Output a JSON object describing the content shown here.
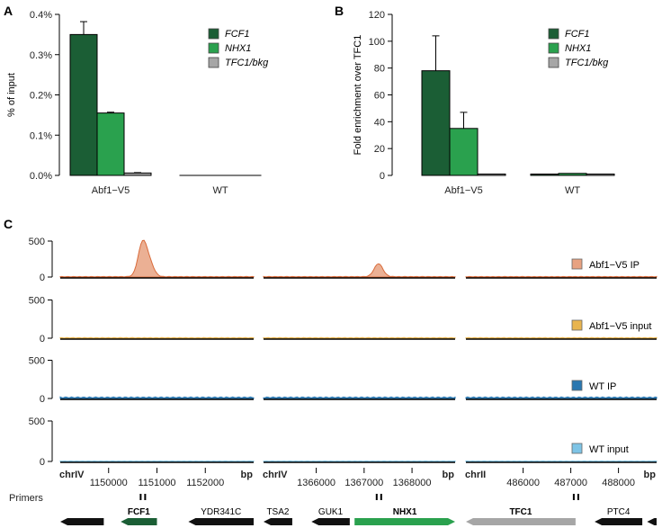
{
  "colors": {
    "FCF1": "#1b5e35",
    "NHX1": "#2aa14e",
    "TFC1_bkg": "#a6a6a6",
    "ip_fill": "#e8a281",
    "ip_line": "#d96b3b",
    "abf1_input": "#e8b44e",
    "wt_ip": "#2a77b0",
    "wt_input": "#7ec4e6"
  },
  "chart_data": [
    {
      "panel": "A",
      "type": "bar",
      "categories": [
        "Abf1−V5",
        "WT"
      ],
      "series": [
        {
          "name": "FCF1",
          "values": [
            0.35,
            0.0
          ],
          "errors": [
            0.032,
            0.0
          ]
        },
        {
          "name": "NHX1",
          "values": [
            0.155,
            0.0
          ],
          "errors": [
            0.002,
            0.0
          ]
        },
        {
          "name": "TFC1/bkg",
          "values": [
            0.006,
            0.0
          ],
          "errors": [
            0.001,
            0.0
          ]
        }
      ],
      "ylabel": "% of input",
      "yticks": [
        "0.0%",
        "0.1%",
        "0.2%",
        "0.3%",
        "0.4%"
      ],
      "ylim": [
        0,
        0.4
      ],
      "legend": "top-right"
    },
    {
      "panel": "B",
      "type": "bar",
      "categories": [
        "Abf1−V5",
        "WT"
      ],
      "series": [
        {
          "name": "FCF1",
          "values": [
            78,
            1
          ],
          "errors": [
            26,
            0
          ]
        },
        {
          "name": "NHX1",
          "values": [
            35,
            1.5
          ],
          "errors": [
            12,
            0
          ]
        },
        {
          "name": "TFC1/bkg",
          "values": [
            1,
            1
          ],
          "errors": [
            0,
            0
          ]
        }
      ],
      "ylabel": "Fold enrichment over TFC1",
      "yticks": [
        "0",
        "20",
        "40",
        "60",
        "80",
        "100",
        "120"
      ],
      "ylim": [
        0,
        120
      ],
      "legend": "top-right"
    },
    {
      "panel": "C",
      "type": "area",
      "yticks": [
        "0",
        "500"
      ],
      "ylim": [
        0,
        600
      ],
      "tracks": [
        {
          "name": "Abf1−V5 IP",
          "peaks": [
            [
              1150700,
              460
            ],
            [
              1150850,
              170
            ],
            [
              1367300,
              180
            ]
          ],
          "baseline": 8
        },
        {
          "name": "Abf1−V5 input",
          "peaks": [],
          "baseline": 8
        },
        {
          "name": "WT IP",
          "peaks": [],
          "baseline": 20
        },
        {
          "name": "WT input",
          "peaks": [],
          "baseline": 6
        }
      ],
      "regions": [
        {
          "chrom": "chrIV",
          "start": 1149000,
          "end": 1153000,
          "ticks": [
            "1150000",
            "1151000",
            "1152000"
          ],
          "tick_values": [
            1150000,
            1151000,
            1152000
          ],
          "unit": "bp"
        },
        {
          "chrom": "chrIV",
          "start": 1364900,
          "end": 1368900,
          "ticks": [
            "1366000",
            "1367000",
            "1368000"
          ],
          "tick_values": [
            1366000,
            1367000,
            1368000
          ],
          "unit": "bp"
        },
        {
          "chrom": "chrII",
          "start": 484800,
          "end": 488800,
          "ticks": [
            "486000",
            "487000",
            "488000"
          ],
          "tick_values": [
            486000,
            487000,
            488000
          ],
          "unit": "bp"
        }
      ],
      "primers_label": "Primers",
      "primers": [
        1150700,
        1367300,
        487100
      ],
      "genes": [
        {
          "region": 0,
          "name": "",
          "start": 1149000,
          "end": 1149900,
          "strand": "-",
          "color": "black",
          "bold": false
        },
        {
          "region": 0,
          "name": "FCF1",
          "start": 1150250,
          "end": 1151000,
          "strand": "-",
          "color": "FCF1",
          "bold": true
        },
        {
          "region": 0,
          "name": "YDR341C",
          "start": 1151650,
          "end": 1153000,
          "strand": "-",
          "color": "black",
          "bold": false
        },
        {
          "region": 1,
          "name": "TSA2",
          "start": 1364900,
          "end": 1365500,
          "strand": "-",
          "color": "black",
          "bold": false
        },
        {
          "region": 1,
          "name": "GUK1",
          "start": 1365900,
          "end": 1366700,
          "strand": "-",
          "color": "black",
          "bold": false
        },
        {
          "region": 1,
          "name": "NHX1",
          "start": 1366800,
          "end": 1368900,
          "strand": "+",
          "color": "NHX1",
          "bold": true
        },
        {
          "region": 2,
          "name": "TFC1",
          "start": 484800,
          "end": 487100,
          "strand": "-",
          "color": "TFC1_bkg",
          "bold": true
        },
        {
          "region": 2,
          "name": "PTC4",
          "start": 487500,
          "end": 488500,
          "strand": "-",
          "color": "black",
          "bold": false
        },
        {
          "region": 2,
          "name": "",
          "start": 488600,
          "end": 488800,
          "strand": "-",
          "color": "black",
          "bold": false
        }
      ]
    }
  ]
}
